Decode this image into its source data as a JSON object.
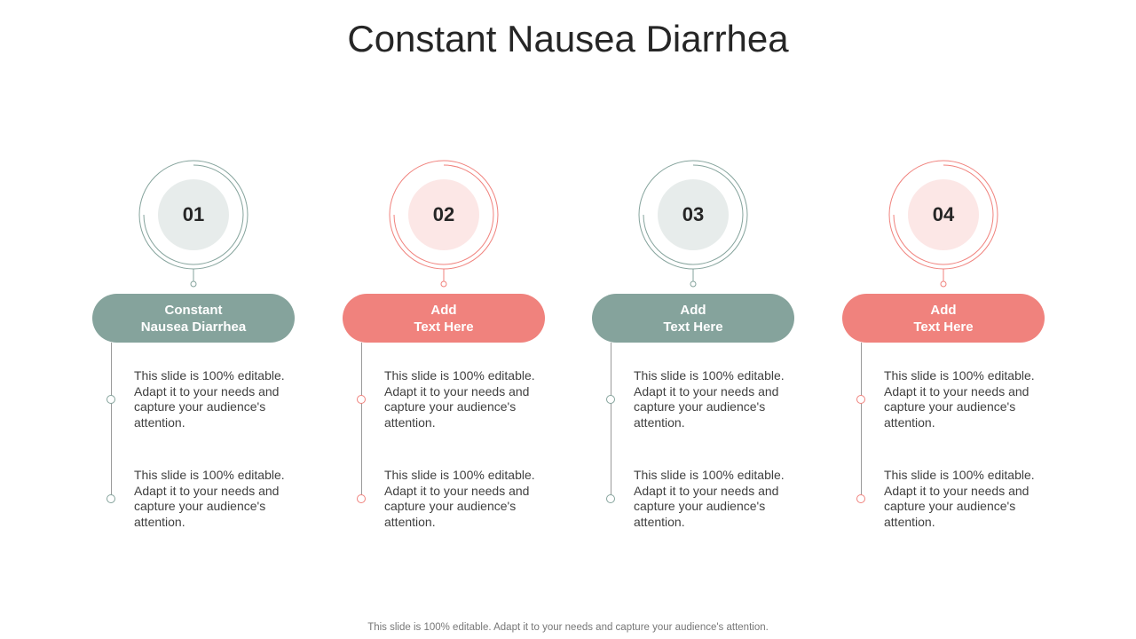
{
  "title": "Constant Nausea Diarrhea",
  "colors": {
    "teal": "#85A39C",
    "teal_fill": "#E7ECEB",
    "coral": "#F0827D",
    "coral_fill": "#FCE7E6"
  },
  "steps": [
    {
      "number": "01",
      "heading_line1": "Constant",
      "heading_line2": "Nausea Diarrhea",
      "color": "teal",
      "text1": "This slide is 100% editable. Adapt it to your needs and capture your audience's attention.",
      "text2": "This slide is 100% editable. Adapt it to your needs and capture your audience's attention."
    },
    {
      "number": "02",
      "heading_line1": "Add",
      "heading_line2": "Text Here",
      "color": "coral",
      "text1": "This slide is 100% editable. Adapt it to your needs and capture your audience's attention.",
      "text2": "This slide is 100% editable. Adapt it to your needs and capture your audience's attention."
    },
    {
      "number": "03",
      "heading_line1": "Add",
      "heading_line2": "Text Here",
      "color": "teal",
      "text1": "This slide is 100% editable. Adapt it to your needs and capture your audience's attention.",
      "text2": "This slide is 100% editable. Adapt it to your needs and capture your audience's attention."
    },
    {
      "number": "04",
      "heading_line1": "Add",
      "heading_line2": "Text Here",
      "color": "coral",
      "text1": "This slide is 100% editable. Adapt it to your needs and capture your audience's attention.",
      "text2": "This slide is 100% editable. Adapt it to your needs and capture your audience's attention."
    }
  ],
  "footer": "This slide is 100% editable. Adapt it to your needs and capture your audience's attention."
}
